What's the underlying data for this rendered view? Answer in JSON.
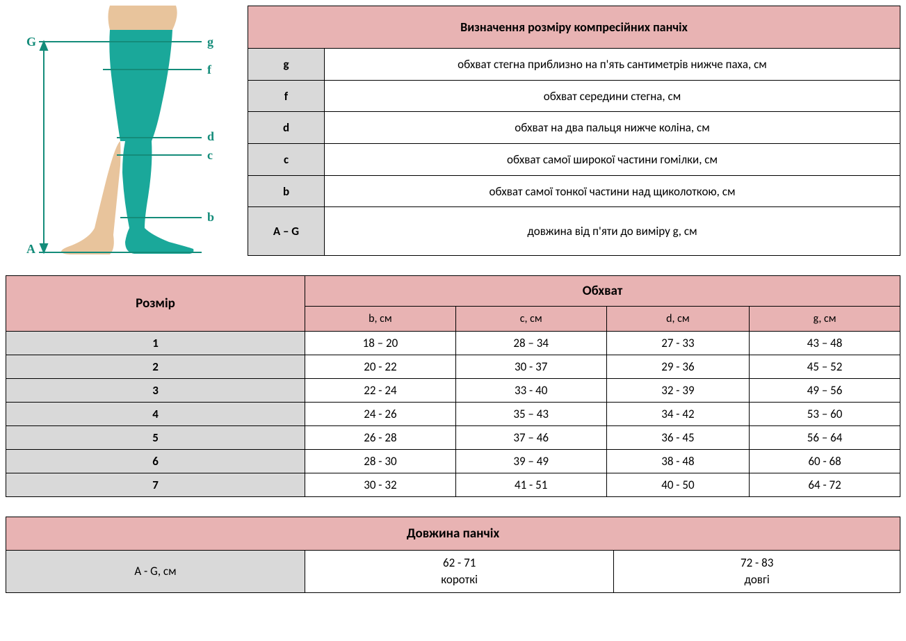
{
  "colors": {
    "header_pink": "#e8b3b3",
    "grey_cell": "#d9d9d9",
    "white": "#ffffff",
    "border": "#000000",
    "leg_skin": "#e8c49c",
    "leg_stocking": "#1aa89a",
    "leg_label_color": "#148c7a"
  },
  "diagram_labels": {
    "G": "G",
    "g": "g",
    "f": "f",
    "d": "d",
    "c": "c",
    "b": "b",
    "A": "A"
  },
  "definitions": {
    "title": "Визначення розміру компресійних панчіх",
    "rows": [
      {
        "key": "g",
        "desc": "обхват стегна приблизно на п'ять сантиметрів нижче паха, см"
      },
      {
        "key": "f",
        "desc": "обхват середини стегна, см"
      },
      {
        "key": "d",
        "desc": "обхват на два пальця нижче коліна, см"
      },
      {
        "key": "c",
        "desc": "обхват самої широкої частини гомілки, см"
      },
      {
        "key": "b",
        "desc": "обхват самої тонкої частини над щиколоткою, см"
      },
      {
        "key": "A – G",
        "desc": "довжина від п'яти до виміру g, см"
      }
    ]
  },
  "sizes": {
    "size_header": "Розмір",
    "girth_header": "Обхват",
    "columns": [
      "b, см",
      "c, см",
      "d, см",
      "g, см"
    ],
    "rows": [
      {
        "size": "1",
        "vals": [
          "18 – 20",
          "28 – 34",
          "27 - 33",
          "43 – 48"
        ]
      },
      {
        "size": "2",
        "vals": [
          "20 - 22",
          "30 - 37",
          "29 - 36",
          "45 – 52"
        ]
      },
      {
        "size": "3",
        "vals": [
          "22 - 24",
          "33 - 40",
          "32 - 39",
          "49 – 56"
        ]
      },
      {
        "size": "4",
        "vals": [
          "24 - 26",
          "35 – 43",
          "34 - 42",
          "53 – 60"
        ]
      },
      {
        "size": "5",
        "vals": [
          "26 - 28",
          "37 – 46",
          "36 - 45",
          "56 – 64"
        ]
      },
      {
        "size": "6",
        "vals": [
          "28 - 30",
          "39 – 49",
          "38 - 48",
          "60 - 68"
        ]
      },
      {
        "size": "7",
        "vals": [
          "30 - 32",
          "41 - 51",
          "40 - 50",
          "64 - 72"
        ]
      }
    ]
  },
  "length": {
    "title": "Довжина панчіх",
    "key": "A - G, см",
    "options": [
      {
        "range": "62 - 71",
        "label": "короткі"
      },
      {
        "range": "72 - 83",
        "label": "довгі"
      }
    ]
  }
}
